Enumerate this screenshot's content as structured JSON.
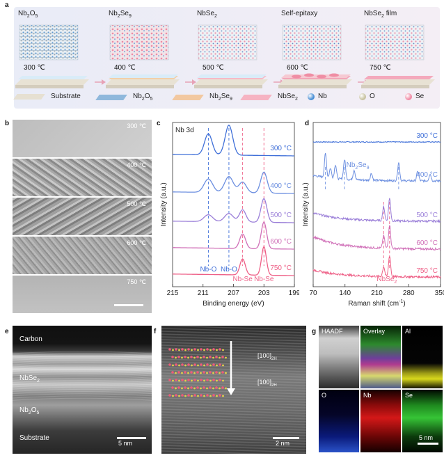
{
  "panel_a": {
    "letter": "a",
    "stages": [
      {
        "title": "Nb2O5",
        "title_main": "Nb",
        "title_sub1": "2",
        "title_mid": "O",
        "title_sub2": "5",
        "temp": "300 ℃"
      },
      {
        "title": "Nb2Se9",
        "title_main": "Nb",
        "title_sub1": "2",
        "title_mid": "Se",
        "title_sub2": "9",
        "temp": "400 ℃"
      },
      {
        "title": "NbSe2",
        "title_main": "NbSe",
        "title_sub1": "2",
        "title_mid": "",
        "title_sub2": "",
        "temp": "500 ℃"
      },
      {
        "title": "Self-epitaxy",
        "title_main": "Self-epitaxy",
        "title_sub1": "",
        "title_mid": "",
        "title_sub2": "",
        "temp": "600 ℃"
      },
      {
        "title": "NbSe2 film",
        "title_main": "NbSe",
        "title_sub1": "2",
        "title_mid": " film",
        "title_sub2": "",
        "temp": "750 ℃"
      }
    ],
    "legend": [
      {
        "name": "substrate",
        "label": "Substrate",
        "color": "#e6e0d2"
      },
      {
        "name": "nb2o5",
        "label_main": "Nb",
        "label_sub1": "2",
        "label_mid": "O",
        "label_sub2": "5",
        "color": "#8fb8dc"
      },
      {
        "name": "nb2se9",
        "label_main": "Nb",
        "label_sub1": "2",
        "label_mid": "Se",
        "label_sub2": "9",
        "color": "#f2c8a0"
      },
      {
        "name": "nbse2",
        "label_main": "NbSe",
        "label_sub1": "2",
        "label_mid": "",
        "label_sub2": "",
        "color": "#f6b3c2"
      },
      {
        "name": "nb",
        "label": "Nb",
        "color": "#4a8fd6"
      },
      {
        "name": "o",
        "label": "O",
        "color": "#c8c2a0"
      },
      {
        "name": "se",
        "label": "Se",
        "color": "#f08aa4"
      }
    ]
  },
  "panel_b": {
    "letter": "b",
    "temps": [
      "300 ℃",
      "400 ℃",
      "500 ℃",
      "600 ℃",
      "750 ℃"
    ]
  },
  "panel_c": {
    "letter": "c",
    "label": "Nb 3d",
    "xlabel": "Binding energy (eV)",
    "ylabel": "Intensity (a.u.)",
    "xticks": [
      "215",
      "211",
      "207",
      "203",
      "199"
    ],
    "annotations": {
      "nbo1": "Nb-O",
      "nbo2": "Nb-O",
      "nbse1": "Nb-Se",
      "nbse2": "Nb-Se"
    }
  },
  "panel_d": {
    "letter": "d",
    "xlabel_main": "Raman shift (cm",
    "xlabel_sup": "-1",
    "xlabel_end": ")",
    "ylabel": "Intensity (a.u.)",
    "xticks": [
      "70",
      "140",
      "210",
      "280",
      "350"
    ],
    "annotations": {
      "nb2se9_main": "Nb",
      "nb2se9_sub1": "2",
      "nb2se9_mid": "Se",
      "nb2se9_sub2": "9",
      "nbse2_main": "NbSe",
      "nbse2_sub": "2"
    }
  },
  "chart_data": [
    {
      "type": "line",
      "panel": "c",
      "title": "Nb 3d",
      "xlabel": "Binding energy (eV)",
      "ylabel": "Intensity (a.u.)",
      "xlim": [
        215,
        199
      ],
      "xticks": [
        215,
        211,
        207,
        203,
        199
      ],
      "series": [
        {
          "name": "300 °C",
          "color": "#3f6fd8",
          "peaks": [
            {
              "x": 210.3,
              "h": 0.55,
              "w": 0.7
            },
            {
              "x": 207.6,
              "h": 0.78,
              "w": 0.7
            }
          ]
        },
        {
          "name": "400 °C",
          "color": "#6c8fe0",
          "peaks": [
            {
              "x": 210.3,
              "h": 0.35,
              "w": 0.8
            },
            {
              "x": 207.6,
              "h": 0.42,
              "w": 0.8
            },
            {
              "x": 205.8,
              "h": 0.28,
              "w": 0.7
            },
            {
              "x": 203.0,
              "h": 0.55,
              "w": 0.6
            }
          ]
        },
        {
          "name": "500 °C",
          "color": "#9a7ed8",
          "peaks": [
            {
              "x": 210.3,
              "h": 0.18,
              "w": 0.8
            },
            {
              "x": 207.6,
              "h": 0.22,
              "w": 0.8
            },
            {
              "x": 205.8,
              "h": 0.32,
              "w": 0.6
            },
            {
              "x": 203.0,
              "h": 0.62,
              "w": 0.55
            }
          ]
        },
        {
          "name": "600 °C",
          "color": "#d070b8",
          "peaks": [
            {
              "x": 205.8,
              "h": 0.38,
              "w": 0.55
            },
            {
              "x": 203.0,
              "h": 0.7,
              "w": 0.5
            }
          ]
        },
        {
          "name": "750 °C",
          "color": "#ee5f86",
          "peaks": [
            {
              "x": 205.8,
              "h": 0.42,
              "w": 0.5
            },
            {
              "x": 203.0,
              "h": 0.75,
              "w": 0.45
            }
          ]
        }
      ],
      "dashed_lines_x": [
        210.3,
        207.6,
        205.8,
        203.0
      ],
      "annotations": [
        "Nb-O",
        "Nb-O",
        "Nb-Se",
        "Nb-Se"
      ]
    },
    {
      "type": "line",
      "panel": "d",
      "xlabel": "Raman shift (cm-1)",
      "ylabel": "Intensity (a.u.)",
      "xlim": [
        70,
        350
      ],
      "xticks": [
        70,
        140,
        210,
        280,
        350
      ],
      "series": [
        {
          "name": "300 °C",
          "color": "#3f6fd8"
        },
        {
          "name": "400 °C",
          "color": "#6c8fe0"
        },
        {
          "name": "500 °C",
          "color": "#9a7ed8"
        },
        {
          "name": "600 °C",
          "color": "#d070b8"
        },
        {
          "name": "750 °C",
          "color": "#ee5f86"
        }
      ],
      "dashed_lines_x": [
        97,
        139,
        225,
        238,
        258
      ],
      "annotations": [
        "Nb2Se9",
        "NbSe2"
      ]
    }
  ],
  "panel_e": {
    "letter": "e",
    "carbon": "Carbon",
    "nbse2_main": "NbSe",
    "nbse2_sub": "2",
    "nb2o5_main": "Nb",
    "nb2o5_sub1": "2",
    "nb2o5_mid": "O",
    "nb2o5_sub2": "5",
    "substrate": "Substrate",
    "scale": "5 nm"
  },
  "panel_f": {
    "letter": "f",
    "dir1_main": "[100]",
    "dir1_sub": "2H",
    "dir2_main": "[100]",
    "dir2_sub": "2H",
    "scale": "2 nm"
  },
  "panel_g": {
    "letter": "g",
    "tiles": [
      {
        "label": "HAADF",
        "name": "haadf"
      },
      {
        "label": "Overlay",
        "name": "overlay"
      },
      {
        "label": "Al",
        "name": "al"
      },
      {
        "label": "O",
        "name": "o"
      },
      {
        "label": "Nb",
        "name": "nb"
      },
      {
        "label": "Se",
        "name": "se"
      }
    ],
    "scale": "5 nm"
  }
}
